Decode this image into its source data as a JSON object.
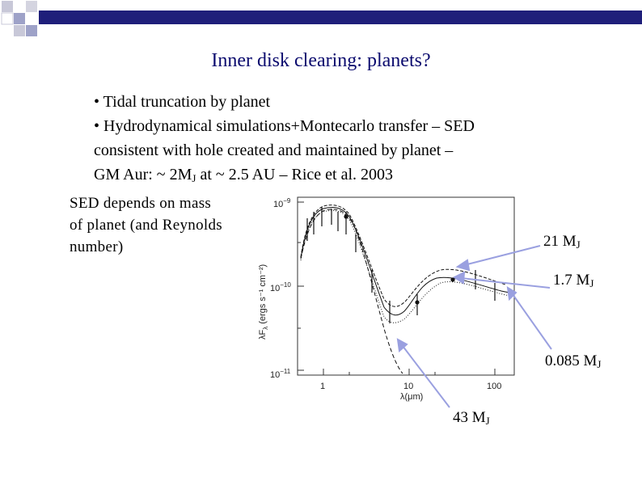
{
  "slide": {
    "title": "Inner disk clearing: planets?",
    "bullets": [
      "• Tidal truncation by planet",
      "• Hydrodynamical simulations+Montecarlo transfer – SED",
      "consistent with hole created and maintained by planet –"
    ],
    "bullet_last": {
      "pre": "GM Aur: ~ 2M",
      "sub": "J",
      "post": " at ~ 2.5 AU – Rice et al. 2003"
    },
    "side_note": [
      "SED depends on mass",
      "of planet (and Reynolds",
      "number)"
    ]
  },
  "plot": {
    "ylabel": "λF",
    "ylabel_sub": "λ",
    "ylabel_units": "(ergs s⁻¹ cm⁻²)",
    "xlabel": "λ(μm)",
    "yticks": [
      {
        "base": "10",
        "exp": "−9"
      },
      {
        "base": "10",
        "exp": "−10"
      },
      {
        "base": "10",
        "exp": "−11"
      }
    ],
    "xticks": [
      "1",
      "10",
      "100"
    ]
  },
  "annotations": [
    {
      "value": "21 M",
      "sub": "J"
    },
    {
      "value": "1.7  M",
      "sub": "J"
    },
    {
      "value": "0.085 M",
      "sub": "J"
    },
    {
      "value": "43 M",
      "sub": "J"
    }
  ],
  "colors": {
    "title": "#0a0a6e",
    "bar": "#1f1f7a",
    "arrow": "#9aa0e0"
  }
}
